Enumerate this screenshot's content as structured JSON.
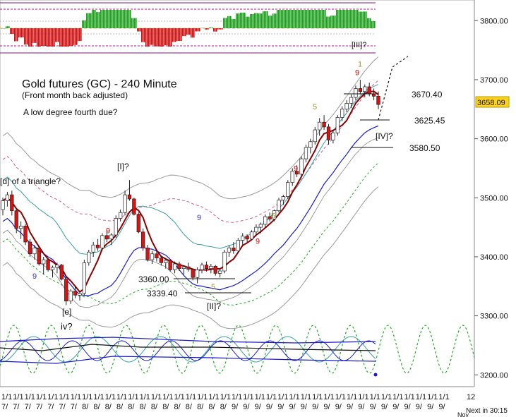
{
  "chart_data": {
    "type": "candlestick",
    "title": "Gold futures (GC) - 240 Minute",
    "subtitle": "(Front month back adjusted)",
    "note": "A low degree fourth due?",
    "price_axis": {
      "ticks": [
        3200,
        3300,
        3400,
        3500,
        3600,
        3700,
        3800
      ],
      "tick_labels": [
        "3200.00",
        "3300.00",
        "3400.00",
        "3500.00",
        "3600.00",
        "3700.00",
        "3800.00"
      ],
      "ylim": [
        3180,
        3835
      ]
    },
    "current_price": {
      "label": "3658.09",
      "value": 3658.09,
      "color": "#ffd21a"
    },
    "x_axis": {
      "label_top": "12",
      "label_bottom": "Nov",
      "count_labels": "1/1",
      "date_labels": [
        "7/",
        "7/",
        "7/",
        "7/",
        "7/",
        "7/",
        "7/",
        "8/",
        "8/",
        "8/",
        "8/",
        "8/",
        "8/",
        "8/",
        "8/",
        "8/",
        "8/",
        "8/",
        "8/",
        "8/",
        "9/",
        "9/",
        "9/",
        "9/",
        "9/",
        "9/",
        "9/",
        "9/",
        "9/",
        "9/",
        "9/",
        "9/",
        "9/",
        "9/",
        "9/",
        "9/",
        "9/",
        "9/",
        "9/"
      ]
    },
    "status": "Next in 30:15",
    "price_levels": [
      {
        "label": "3670.40",
        "value": 3670.4
      },
      {
        "label": "3625.45",
        "value": 3625.45
      },
      {
        "label": "3580.50",
        "value": 3580.5
      },
      {
        "label": "3360.00",
        "value": 3360.0
      },
      {
        "label": "3339.40",
        "value": 3339.4
      }
    ],
    "wave_labels": [
      {
        "text": "[d] of a triangle?",
        "at": 3508
      },
      {
        "text": "[I]?",
        "at": 3565
      },
      {
        "text": "[II]?",
        "at": 3315
      },
      {
        "text": "[e]",
        "at": 3306
      },
      {
        "text": "iv?",
        "at": 3280
      },
      {
        "text": "[IV]?",
        "at": 3600
      },
      {
        "text": "[III]?",
        "at": 3762
      }
    ],
    "count_marks": [
      {
        "text": "9",
        "color": "#e00000",
        "at": 3440
      },
      {
        "text": "9",
        "color": "#e00000",
        "at": 3422
      },
      {
        "text": "9",
        "color": "#3333cc",
        "at": 3363
      },
      {
        "text": "9",
        "color": "#3333cc",
        "at": 3462
      },
      {
        "text": "5",
        "color": "#999933",
        "at": 3345
      },
      {
        "text": "5",
        "color": "#999933",
        "at": 3465
      },
      {
        "text": "9",
        "color": "#e00000",
        "at": 3545
      },
      {
        "text": "5",
        "color": "#999933",
        "at": 3650
      },
      {
        "text": "9",
        "color": "#e00000",
        "at": 3708
      },
      {
        "text": "1",
        "color": "#999933",
        "at": 3722
      }
    ],
    "candles": [
      [
        3480,
        3500,
        3470,
        3495
      ],
      [
        3495,
        3510,
        3485,
        3505
      ],
      [
        3505,
        3512,
        3470,
        3478
      ],
      [
        3478,
        3482,
        3440,
        3448
      ],
      [
        3448,
        3460,
        3430,
        3452
      ],
      [
        3452,
        3455,
        3420,
        3425
      ],
      [
        3425,
        3430,
        3400,
        3405
      ],
      [
        3405,
        3420,
        3395,
        3415
      ],
      [
        3415,
        3418,
        3385,
        3388
      ],
      [
        3388,
        3400,
        3370,
        3395
      ],
      [
        3395,
        3398,
        3375,
        3378
      ],
      [
        3378,
        3385,
        3365,
        3382
      ],
      [
        3382,
        3390,
        3372,
        3386
      ],
      [
        3386,
        3388,
        3360,
        3362
      ],
      [
        3362,
        3368,
        3318,
        3325
      ],
      [
        3325,
        3345,
        3320,
        3342
      ],
      [
        3342,
        3350,
        3330,
        3335
      ],
      [
        3335,
        3340,
        3326,
        3338
      ],
      [
        3338,
        3395,
        3334,
        3390
      ],
      [
        3390,
        3412,
        3385,
        3408
      ],
      [
        3408,
        3425,
        3400,
        3420
      ],
      [
        3420,
        3430,
        3410,
        3415
      ],
      [
        3415,
        3440,
        3412,
        3436
      ],
      [
        3436,
        3445,
        3425,
        3430
      ],
      [
        3430,
        3440,
        3420,
        3437
      ],
      [
        3437,
        3470,
        3432,
        3465
      ],
      [
        3465,
        3480,
        3460,
        3475
      ],
      [
        3475,
        3512,
        3470,
        3505
      ],
      [
        3505,
        3530,
        3495,
        3498
      ],
      [
        3498,
        3500,
        3470,
        3472
      ],
      [
        3472,
        3475,
        3440,
        3442
      ],
      [
        3442,
        3448,
        3410,
        3415
      ],
      [
        3415,
        3420,
        3392,
        3395
      ],
      [
        3395,
        3410,
        3388,
        3405
      ],
      [
        3405,
        3412,
        3392,
        3398
      ],
      [
        3398,
        3402,
        3385,
        3390
      ],
      [
        3390,
        3398,
        3380,
        3394
      ],
      [
        3394,
        3396,
        3375,
        3378
      ],
      [
        3378,
        3392,
        3372,
        3388
      ],
      [
        3388,
        3392,
        3376,
        3380
      ],
      [
        3380,
        3385,
        3370,
        3383
      ],
      [
        3383,
        3390,
        3375,
        3379
      ],
      [
        3379,
        3380,
        3360,
        3365
      ],
      [
        3365,
        3382,
        3355,
        3378
      ],
      [
        3378,
        3390,
        3372,
        3386
      ],
      [
        3386,
        3392,
        3375,
        3380
      ],
      [
        3380,
        3388,
        3372,
        3384
      ],
      [
        3384,
        3386,
        3368,
        3372
      ],
      [
        3372,
        3380,
        3365,
        3376
      ],
      [
        3376,
        3412,
        3372,
        3408
      ],
      [
        3408,
        3420,
        3400,
        3415
      ],
      [
        3415,
        3425,
        3405,
        3410
      ],
      [
        3410,
        3432,
        3406,
        3428
      ],
      [
        3428,
        3440,
        3420,
        3435
      ],
      [
        3435,
        3438,
        3425,
        3430
      ],
      [
        3430,
        3445,
        3428,
        3442
      ],
      [
        3442,
        3455,
        3435,
        3450
      ],
      [
        3450,
        3458,
        3440,
        3455
      ],
      [
        3455,
        3472,
        3450,
        3468
      ],
      [
        3468,
        3475,
        3460,
        3464
      ],
      [
        3464,
        3480,
        3460,
        3478
      ],
      [
        3478,
        3500,
        3475,
        3496
      ],
      [
        3496,
        3505,
        3488,
        3502
      ],
      [
        3502,
        3530,
        3498,
        3526
      ],
      [
        3526,
        3550,
        3520,
        3545
      ],
      [
        3545,
        3555,
        3535,
        3540
      ],
      [
        3540,
        3570,
        3536,
        3566
      ],
      [
        3566,
        3590,
        3560,
        3585
      ],
      [
        3585,
        3600,
        3575,
        3595
      ],
      [
        3595,
        3620,
        3590,
        3615
      ],
      [
        3615,
        3635,
        3605,
        3628
      ],
      [
        3628,
        3640,
        3615,
        3620
      ],
      [
        3620,
        3625,
        3590,
        3598
      ],
      [
        3598,
        3615,
        3592,
        3610
      ],
      [
        3610,
        3640,
        3605,
        3636
      ],
      [
        3636,
        3655,
        3630,
        3650
      ],
      [
        3650,
        3665,
        3645,
        3660
      ],
      [
        3660,
        3675,
        3652,
        3670
      ],
      [
        3670,
        3690,
        3665,
        3685
      ],
      [
        3685,
        3700,
        3675,
        3680
      ],
      [
        3680,
        3692,
        3670,
        3688
      ],
      [
        3688,
        3695,
        3672,
        3676
      ],
      [
        3676,
        3685,
        3665,
        3672
      ],
      [
        3672,
        3680,
        3650,
        3658
      ]
    ]
  }
}
